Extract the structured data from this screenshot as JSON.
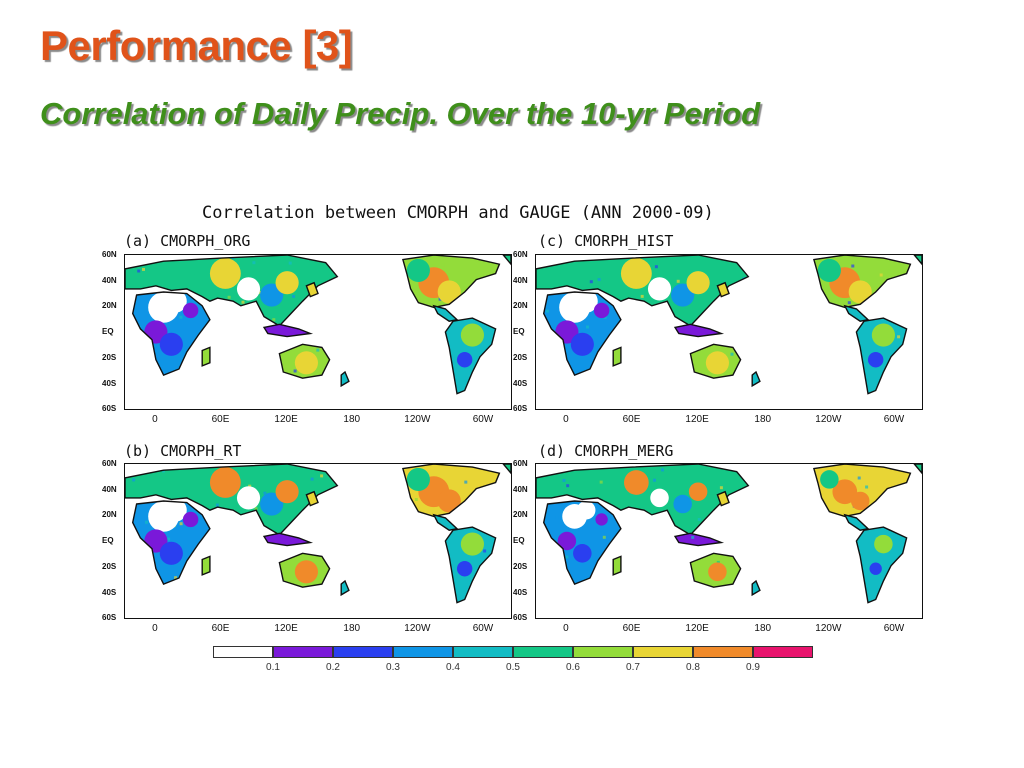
{
  "slide": {
    "title": "Performance [3]",
    "subtitle": "Correlation of Daily Precip. Over the 10-yr Period"
  },
  "figure": {
    "title": "Correlation between CMORPH and GAUGE (ANN 2000-09)",
    "panels": [
      {
        "id": "a",
        "label": "(a) CMORPH_ORG"
      },
      {
        "id": "c",
        "label": "(c) CMORPH_HIST"
      },
      {
        "id": "b",
        "label": "(b) CMORPH_RT"
      },
      {
        "id": "d",
        "label": "(d) CMORPH_MERG"
      }
    ],
    "lat_ticks": [
      "60N",
      "40N",
      "20N",
      "EQ",
      "20S",
      "40S",
      "60S"
    ],
    "lon_ticks": [
      "0",
      "60E",
      "120E",
      "180",
      "120W",
      "60W"
    ],
    "colorbar": {
      "colors": [
        "#ffffff",
        "#7a19d9",
        "#2a3ff0",
        "#0f95e6",
        "#12bcc4",
        "#14c786",
        "#93dc3a",
        "#e8d535",
        "#f08a2a",
        "#e8146d"
      ],
      "tick_labels": [
        "0.1",
        "0.2",
        "0.3",
        "0.4",
        "0.5",
        "0.6",
        "0.7",
        "0.8",
        "0.9"
      ]
    }
  }
}
